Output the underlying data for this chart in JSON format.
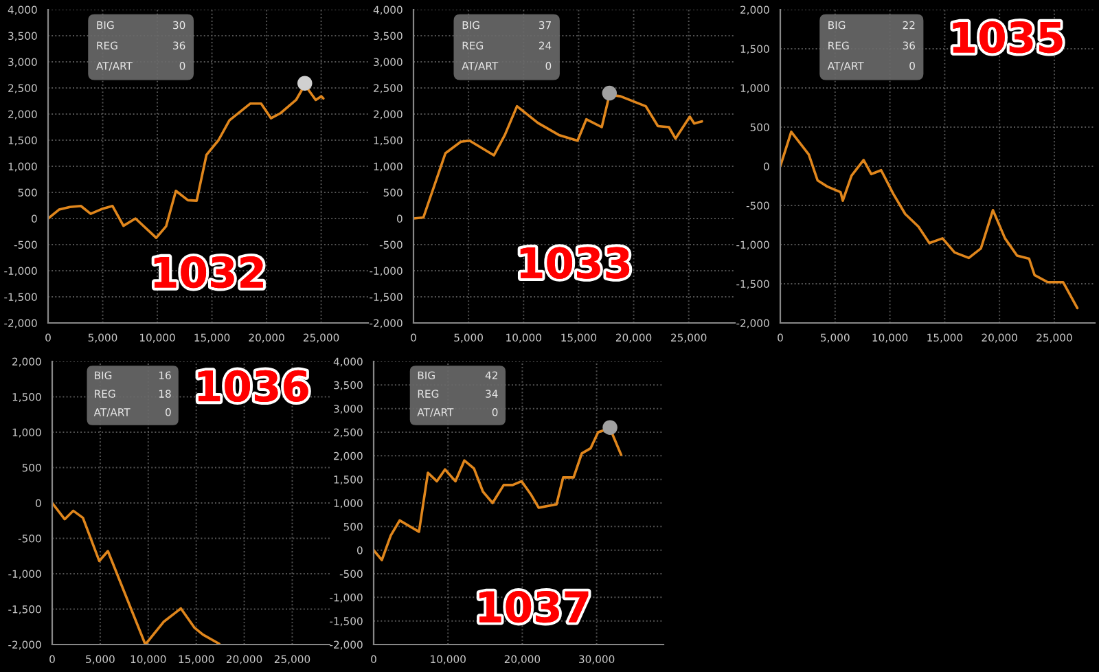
{
  "chart_data": [
    {
      "type": "line",
      "title": "1032",
      "annotations": [
        "BIG",
        "30",
        "REG",
        "36",
        "AT/ART",
        "0"
      ],
      "grid": true,
      "marker": "none",
      "xlim": [
        0,
        29300
      ],
      "ylim": [
        -2000,
        4000
      ],
      "xticks": [
        0,
        {
          "value": 5000,
          "label": "5,000"
        },
        {
          "value": 10000,
          "label": "10,000"
        },
        {
          "value": 15000,
          "label": "15,000"
        },
        {
          "value": 20000,
          "label": "20,000"
        },
        {
          "value": 25000,
          "label": "25,000"
        }
      ],
      "yticks": [
        {
          "value": -2000,
          "label": "-2,000"
        },
        {
          "value": -1500,
          "label": "-1,500"
        },
        {
          "value": -1000,
          "label": "-1,000"
        },
        -500,
        0,
        500,
        {
          "value": 1000,
          "label": "1,000"
        },
        {
          "value": 1500,
          "label": "1,500"
        },
        {
          "value": 2000,
          "label": "2,000"
        },
        {
          "value": 2500,
          "label": "2,500"
        },
        {
          "value": 3000,
          "label": "3,000"
        },
        {
          "value": 3500,
          "label": "3,500"
        },
        {
          "value": 4000,
          "label": "4,000"
        }
      ],
      "series": [
        {
          "color": "#e0861c",
          "x": [
            0,
            1000,
            2000,
            3000,
            3900,
            4900,
            5900,
            6900,
            8000,
            9900,
            10800,
            11700,
            12800,
            13600,
            14500,
            15600,
            16600,
            18500,
            19500,
            20400,
            21300,
            22700,
            23500,
            24500,
            25000,
            25200
          ],
          "values": [
            0,
            170,
            220,
            240,
            90,
            180,
            240,
            -140,
            0,
            -370,
            -150,
            530,
            350,
            340,
            1220,
            1500,
            1880,
            2200,
            2200,
            1920,
            2020,
            2270,
            2560,
            2270,
            2340,
            2300
          ]
        },
        {
          "type": "scatter",
          "marker": "circle",
          "color": "#d0d0d0",
          "x": [
            23500
          ],
          "values": [
            2590
          ]
        }
      ]
    },
    {
      "type": "line",
      "title": "1033",
      "annotations": [
        "BIG",
        "37",
        "REG",
        "24",
        "AT/ART",
        "0"
      ],
      "grid": true,
      "marker": "none",
      "xlim": [
        0,
        29200
      ],
      "ylim": [
        -2000,
        4000
      ],
      "xticks": [
        0,
        {
          "value": 5000,
          "label": "5,000"
        },
        {
          "value": 10000,
          "label": "10,000"
        },
        {
          "value": 15000,
          "label": "15,000"
        },
        {
          "value": 20000,
          "label": "20,000"
        },
        {
          "value": 25000,
          "label": "25,000"
        }
      ],
      "yticks": [
        {
          "value": -2000,
          "label": "-2,000"
        },
        {
          "value": -1500,
          "label": "-1,500"
        },
        {
          "value": -1000,
          "label": "-1,000"
        },
        -500,
        0,
        500,
        {
          "value": 1000,
          "label": "1,000"
        },
        {
          "value": 1500,
          "label": "1,500"
        },
        {
          "value": 2000,
          "label": "2,000"
        },
        {
          "value": 2500,
          "label": "2,500"
        },
        {
          "value": 3000,
          "label": "3,000"
        },
        {
          "value": 3500,
          "label": "3,500"
        },
        {
          "value": 4000,
          "label": "4,000"
        }
      ],
      "series": [
        {
          "color": "#e0861c",
          "x": [
            0,
            900,
            2900,
            4300,
            5100,
            7300,
            8300,
            9400,
            11300,
            13200,
            14900,
            15700,
            17100,
            17800,
            18800,
            21100,
            22200,
            23200,
            23800,
            25100,
            25500,
            26200
          ],
          "values": [
            0,
            20,
            1250,
            1470,
            1490,
            1210,
            1600,
            2150,
            1830,
            1600,
            1490,
            1900,
            1750,
            2370,
            2340,
            2150,
            1770,
            1750,
            1530,
            1950,
            1820,
            1860
          ]
        },
        {
          "type": "scatter",
          "marker": "circle",
          "color": "#a0a0a0",
          "x": [
            17800
          ],
          "values": [
            2400
          ]
        }
      ]
    },
    {
      "type": "line",
      "title": "1035",
      "annotations": [
        "BIG",
        "22",
        "REG",
        "36",
        "AT/ART",
        "0"
      ],
      "grid": true,
      "marker": "none",
      "xlim": [
        0,
        28700
      ],
      "ylim": [
        -2000,
        2000
      ],
      "xticks": [
        0,
        {
          "value": 5000,
          "label": "5,000"
        },
        {
          "value": 10000,
          "label": "10,000"
        },
        {
          "value": 15000,
          "label": "15,000"
        },
        {
          "value": 20000,
          "label": "20,000"
        },
        {
          "value": 25000,
          "label": "25,000"
        }
      ],
      "yticks": [
        {
          "value": -2000,
          "label": "-2,000"
        },
        {
          "value": -1500,
          "label": "-1,500"
        },
        {
          "value": -1000,
          "label": "-1,000"
        },
        -500,
        0,
        500,
        {
          "value": 1000,
          "label": "1,000"
        },
        {
          "value": 1500,
          "label": "1,500"
        },
        {
          "value": 2000,
          "label": "2,000"
        }
      ],
      "series": [
        {
          "color": "#e0861c",
          "x": [
            0,
            1000,
            2600,
            3400,
            4300,
            5500,
            5700,
            6500,
            7600,
            8300,
            9200,
            10300,
            11400,
            12600,
            13600,
            14800,
            15900,
            17200,
            18300,
            19400,
            20500,
            21600,
            22700,
            23200,
            24400,
            25800,
            27100
          ],
          "values": [
            0,
            440,
            150,
            -180,
            -260,
            -330,
            -440,
            -120,
            80,
            -100,
            -50,
            -350,
            -610,
            -770,
            -980,
            -920,
            -1100,
            -1170,
            -1050,
            -560,
            -920,
            -1140,
            -1180,
            -1390,
            -1480,
            -1480,
            -1810
          ]
        }
      ]
    },
    {
      "type": "line",
      "title": "1036",
      "annotations": [
        "BIG",
        "16",
        "REG",
        "18",
        "AT/ART",
        "0"
      ],
      "grid": true,
      "marker": "none",
      "xlim": [
        0,
        28900
      ],
      "ylim": [
        -2000,
        2000
      ],
      "xticks": [
        0,
        {
          "value": 5000,
          "label": "5,000"
        },
        {
          "value": 10000,
          "label": "10,000"
        },
        {
          "value": 15000,
          "label": "15,000"
        },
        {
          "value": 20000,
          "label": "20,000"
        },
        {
          "value": 25000,
          "label": "25,000"
        }
      ],
      "yticks": [
        {
          "value": -2000,
          "label": "-2,000"
        },
        {
          "value": -1500,
          "label": "-1,500"
        },
        {
          "value": -1000,
          "label": "-1,000"
        },
        -500,
        0,
        500,
        {
          "value": 1000,
          "label": "1,000"
        },
        {
          "value": 1500,
          "label": "1,500"
        },
        {
          "value": 2000,
          "label": "2,000"
        }
      ],
      "series": [
        {
          "color": "#e0861c",
          "x": [
            0,
            1300,
            2200,
            3200,
            4900,
            5800,
            9700,
            11600,
            13400,
            14800,
            15700,
            17400
          ],
          "values": [
            0,
            -230,
            -110,
            -210,
            -820,
            -680,
            -2000,
            -1680,
            -1490,
            -1760,
            -1860,
            -1990
          ]
        }
      ]
    },
    {
      "type": "line",
      "title": "1037",
      "annotations": [
        "BIG",
        "42",
        "REG",
        "34",
        "AT/ART",
        "0"
      ],
      "grid": true,
      "marker": "none",
      "xlim": [
        0,
        39000
      ],
      "ylim": [
        -2000,
        4000
      ],
      "xticks": [
        0,
        {
          "value": 10000,
          "label": "10,000"
        },
        {
          "value": 20000,
          "label": "20,000"
        },
        {
          "value": 30000,
          "label": "30,000"
        }
      ],
      "yticks": [
        {
          "value": -2000,
          "label": "-2,000"
        },
        {
          "value": -1500,
          "label": "-1,500"
        },
        {
          "value": -1000,
          "label": "-1,000"
        },
        -500,
        0,
        500,
        {
          "value": 1000,
          "label": "1,000"
        },
        {
          "value": 1500,
          "label": "1,500"
        },
        {
          "value": 2000,
          "label": "2,000"
        },
        {
          "value": 2500,
          "label": "2,500"
        },
        {
          "value": 3000,
          "label": "3,000"
        },
        {
          "value": 3500,
          "label": "3,500"
        },
        {
          "value": 4000,
          "label": "4,000"
        }
      ],
      "series": [
        {
          "color": "#e0861c",
          "x": [
            0,
            1100,
            2300,
            3500,
            6100,
            7300,
            8500,
            9600,
            11000,
            12200,
            13500,
            14700,
            16000,
            17500,
            18700,
            19900,
            21200,
            22200,
            24600,
            25500,
            26900,
            28000,
            29200,
            30200,
            31800,
            33300
          ],
          "values": [
            0,
            -210,
            310,
            630,
            390,
            1640,
            1460,
            1710,
            1460,
            1900,
            1730,
            1240,
            1000,
            1380,
            1380,
            1460,
            1170,
            900,
            970,
            1540,
            1540,
            2050,
            2160,
            2500,
            2580,
            2020
          ]
        },
        {
          "type": "scatter",
          "marker": "circle",
          "color": "#a0a0a0",
          "x": [
            31800
          ],
          "values": [
            2600
          ]
        }
      ]
    }
  ]
}
